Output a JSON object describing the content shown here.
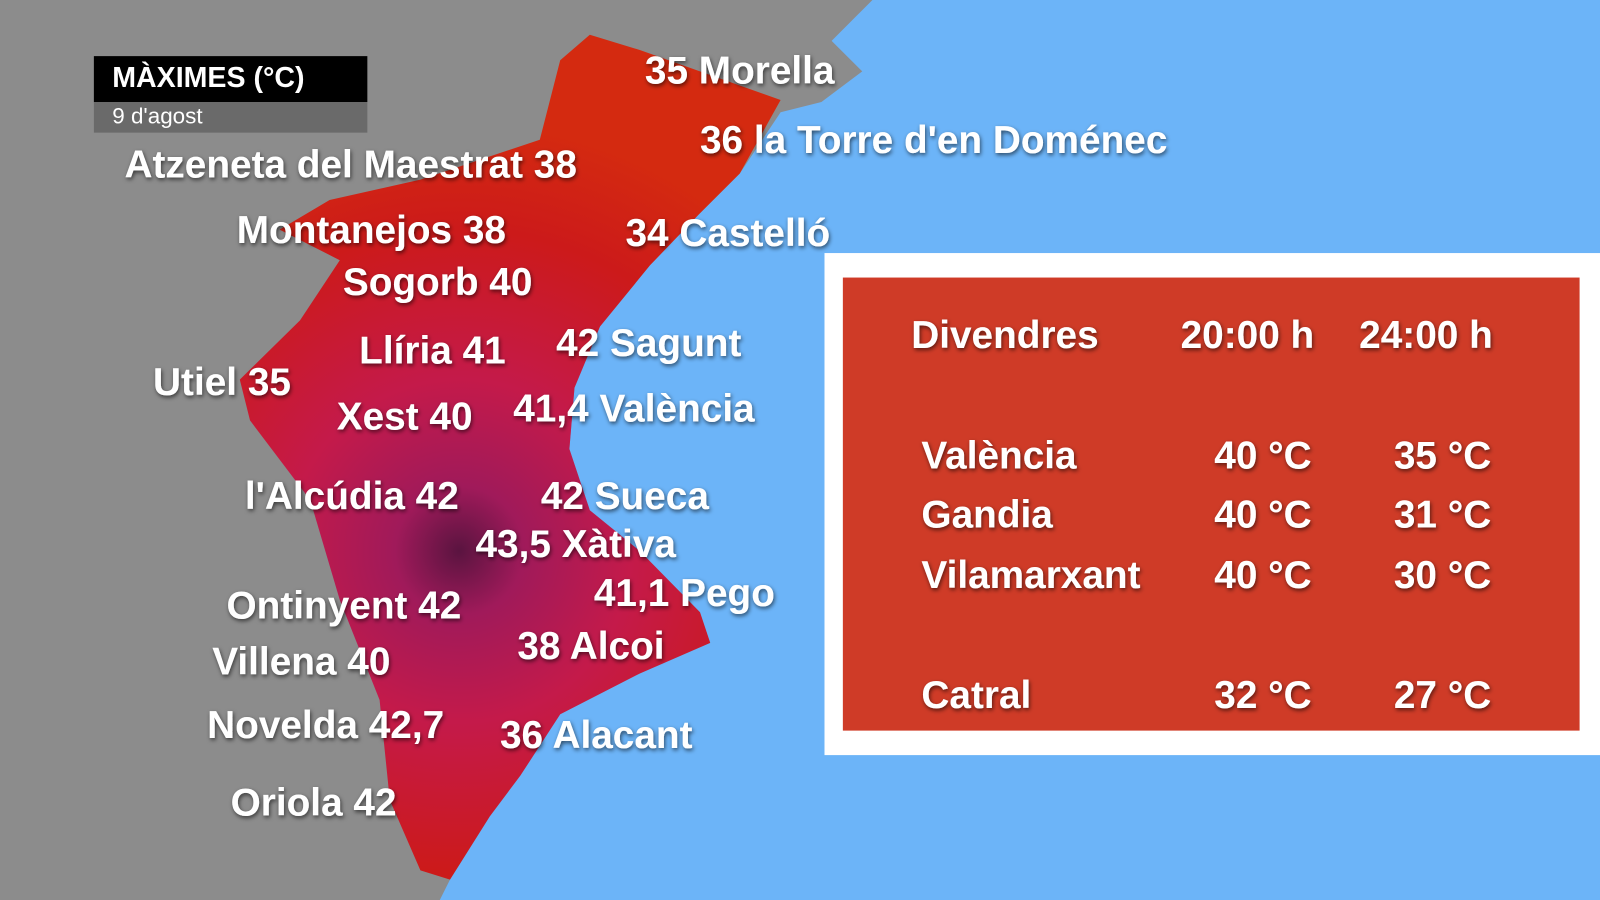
{
  "title_box": {
    "title": "MÀXIMES (°C)",
    "date": "9 d'agost"
  },
  "map_labels": [
    "35 Morella",
    "36 la Torre d'en Doménec",
    "Atzeneta del Maestrat 38",
    "Montanejos 38",
    "34 Castelló",
    "Sogorb 40",
    "Llíria 41",
    "42 Sagunt",
    "Utiel 35",
    "Xest 40",
    "41,4 València",
    "l'Alcúdia 42",
    "42 Sueca",
    "43,5 Xàtiva",
    "Ontinyent 42",
    "41,1 Pego",
    "Villena 40",
    "38 Alcoi",
    "Novelda 42,7",
    "36 Alacant",
    "Oriola 42"
  ],
  "table": {
    "header": [
      "Divendres",
      "20:00 h",
      "24:00 h"
    ],
    "rows": [
      [
        "València",
        "40 °C",
        "35 °C"
      ],
      [
        "Gandia",
        "40 °C",
        "31 °C"
      ],
      [
        "Vilamarxant",
        "40 °C",
        "30 °C"
      ],
      [
        "Catral",
        "32 °C",
        "27 °C"
      ]
    ]
  }
}
